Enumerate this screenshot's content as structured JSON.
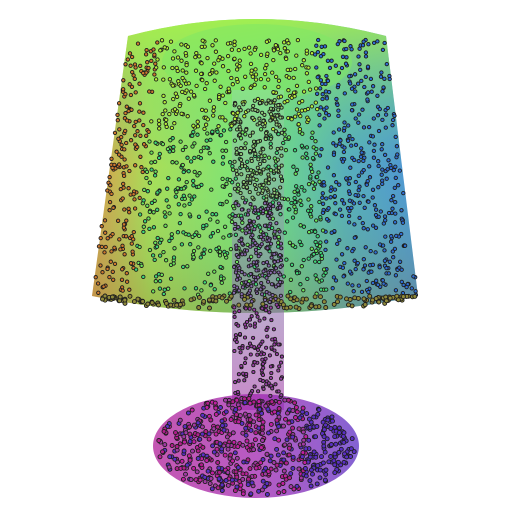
{
  "scene": {
    "subject": "lamp",
    "render_style": "colored point cloud",
    "background_color": "#ffffff",
    "point_outline_color": "#1e1e1e",
    "parts": [
      {
        "id": "shade",
        "colors": [
          "#b7f03a",
          "#6ee65c",
          "#3fd97a",
          "#2f6fd6",
          "#d07a2e"
        ]
      },
      {
        "id": "stem",
        "colors": [
          "#93d27b",
          "#8a6bb0",
          "#9a3fa8"
        ]
      },
      {
        "id": "base",
        "colors": [
          "#a03aa3",
          "#c020a0",
          "#5a2fc4",
          "#b01f8c"
        ]
      }
    ]
  }
}
